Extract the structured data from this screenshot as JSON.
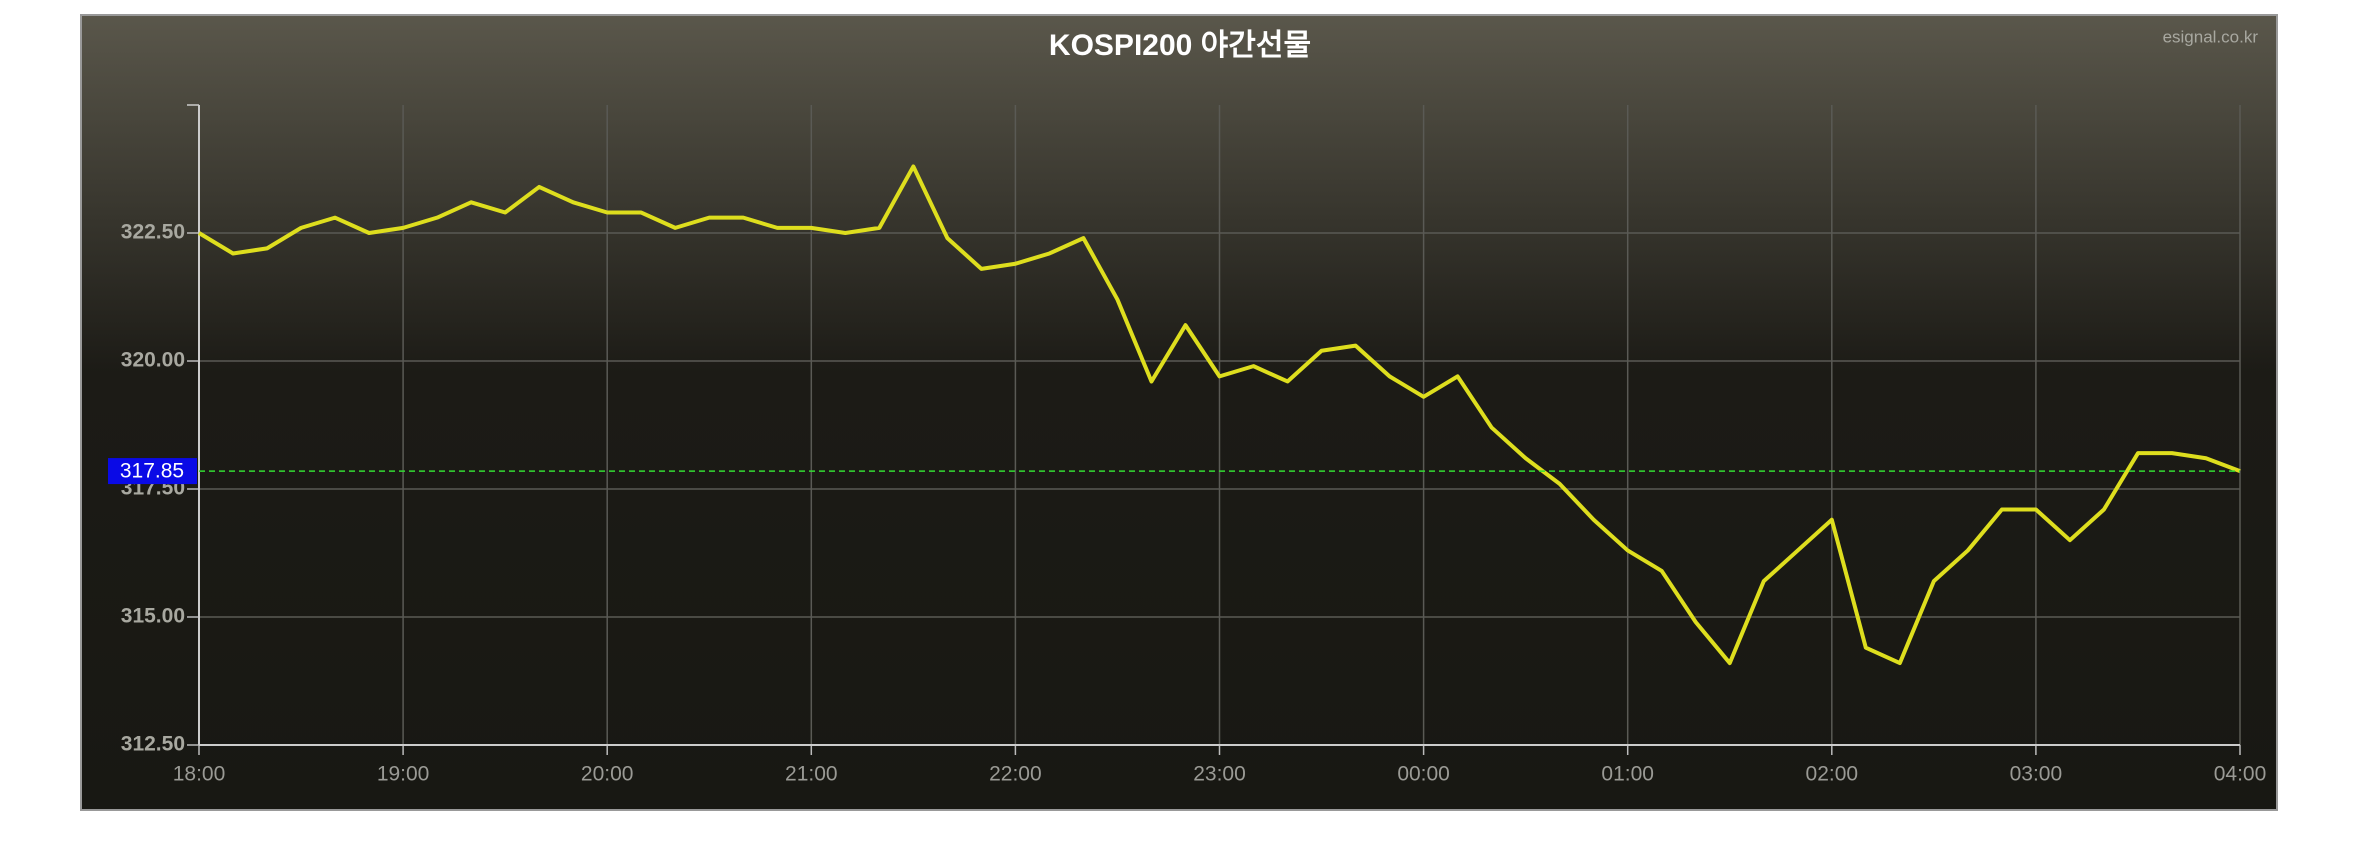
{
  "chart_data": {
    "type": "line",
    "title": "KOSPI200 야간선물",
    "source": "esignal.co.kr",
    "x": [
      "18:00",
      "18:10",
      "18:20",
      "18:30",
      "18:40",
      "18:50",
      "19:00",
      "19:10",
      "19:20",
      "19:30",
      "19:40",
      "19:50",
      "20:00",
      "20:10",
      "20:20",
      "20:30",
      "20:40",
      "20:50",
      "21:00",
      "21:10",
      "21:20",
      "21:30",
      "21:40",
      "21:50",
      "22:00",
      "22:10",
      "22:20",
      "22:30",
      "22:40",
      "22:50",
      "23:00",
      "23:10",
      "23:20",
      "23:30",
      "23:40",
      "23:50",
      "00:00",
      "00:10",
      "00:20",
      "00:30",
      "00:40",
      "00:50",
      "01:00",
      "01:10",
      "01:20",
      "01:30",
      "01:40",
      "01:50",
      "02:00",
      "02:10",
      "02:20",
      "02:30",
      "02:40",
      "02:50",
      "03:00",
      "03:10",
      "03:20",
      "03:30",
      "03:40",
      "03:50",
      "04:00"
    ],
    "series": [
      {
        "color": "#dede1e",
        "values": [
          322.5,
          322.1,
          322.2,
          322.6,
          322.8,
          322.5,
          322.6,
          322.8,
          323.1,
          322.9,
          323.4,
          323.1,
          322.9,
          322.9,
          322.6,
          322.8,
          322.8,
          322.6,
          322.6,
          322.5,
          322.6,
          323.8,
          322.4,
          321.8,
          321.9,
          322.1,
          322.4,
          321.2,
          319.6,
          320.7,
          319.7,
          319.9,
          319.6,
          320.2,
          320.3,
          319.7,
          319.3,
          319.7,
          318.7,
          318.1,
          317.6,
          316.9,
          316.3,
          315.9,
          314.9,
          314.1,
          315.7,
          316.3,
          316.9,
          314.4,
          314.1,
          315.7,
          316.3,
          317.1,
          317.1,
          316.5,
          317.1,
          318.2,
          318.2,
          318.1,
          317.85
        ]
      }
    ],
    "current": {
      "value": 317.85,
      "label": "317.85"
    },
    "ylim": [
      312.5,
      325
    ],
    "yticks": [
      {
        "value": 312.5,
        "label": "312.50"
      },
      {
        "value": 315,
        "label": "315.00"
      },
      {
        "value": 317.5,
        "label": "317.50"
      },
      {
        "value": 320,
        "label": "320.00"
      },
      {
        "value": 322.5,
        "label": "322.50"
      }
    ],
    "xticks": [
      "18:00",
      "19:00",
      "20:00",
      "21:00",
      "22:00",
      "23:00",
      "00:00",
      "01:00",
      "02:00",
      "03:00",
      "04:00"
    ],
    "grid": true
  }
}
